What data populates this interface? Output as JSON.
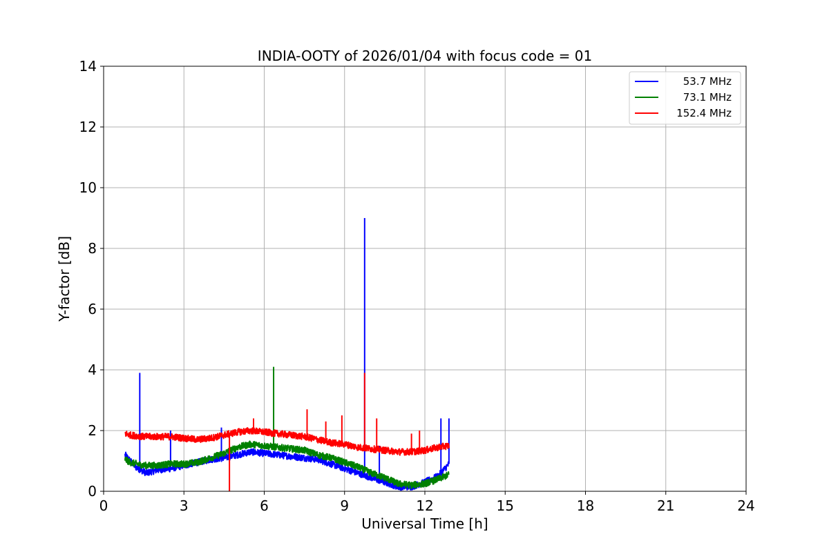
{
  "chart_data": {
    "type": "line",
    "title": "INDIA-OOTY of 2026/01/04 with focus code = 01",
    "xlabel": "Universal Time [h]",
    "ylabel": "Y-factor [dB]",
    "xlim": [
      0,
      24
    ],
    "ylim": [
      0,
      14
    ],
    "xticks": [
      0,
      3,
      6,
      9,
      12,
      15,
      18,
      21,
      24
    ],
    "yticks": [
      0,
      2,
      4,
      6,
      8,
      10,
      12,
      14
    ],
    "xtick_labels": [
      "0",
      "3",
      "6",
      "9",
      "12",
      "15",
      "18",
      "21",
      "24"
    ],
    "ytick_labels": [
      "0",
      "2",
      "4",
      "6",
      "8",
      "10",
      "12",
      "14"
    ],
    "grid": true,
    "legend_position": "top-right",
    "series": [
      {
        "name": "53.7 MHz",
        "color": "#0000ff",
        "x": [
          0.8,
          1.0,
          1.2,
          1.4,
          1.6,
          2.0,
          2.5,
          3.0,
          3.5,
          4.0,
          4.5,
          5.0,
          5.5,
          6.0,
          6.5,
          7.0,
          7.5,
          8.0,
          8.5,
          9.0,
          9.5,
          10.0,
          10.5,
          11.0,
          11.5,
          12.0,
          12.5,
          12.9
        ],
        "y": [
          1.2,
          1.0,
          0.8,
          0.7,
          0.6,
          0.7,
          0.75,
          0.85,
          0.95,
          1.05,
          1.1,
          1.2,
          1.3,
          1.25,
          1.2,
          1.15,
          1.1,
          1.05,
          0.9,
          0.75,
          0.6,
          0.45,
          0.3,
          0.15,
          0.15,
          0.3,
          0.5,
          0.9
        ],
        "spikes": [
          [
            1.35,
            3.9
          ],
          [
            2.5,
            2.0
          ],
          [
            4.4,
            2.1
          ],
          [
            9.75,
            9.0
          ],
          [
            10.3,
            1.5
          ],
          [
            12.6,
            2.4
          ],
          [
            12.9,
            2.4
          ]
        ]
      },
      {
        "name": "73.1 MHz",
        "color": "#008000",
        "x": [
          0.8,
          1.0,
          1.5,
          2.0,
          2.5,
          3.0,
          3.5,
          4.0,
          4.5,
          5.0,
          5.5,
          6.0,
          6.5,
          7.0,
          7.5,
          8.0,
          8.5,
          9.0,
          9.5,
          10.0,
          10.5,
          11.0,
          11.5,
          12.0,
          12.5,
          12.9
        ],
        "y": [
          1.05,
          0.95,
          0.85,
          0.85,
          0.9,
          0.9,
          0.95,
          1.1,
          1.25,
          1.45,
          1.55,
          1.5,
          1.45,
          1.4,
          1.35,
          1.2,
          1.1,
          0.95,
          0.8,
          0.6,
          0.45,
          0.25,
          0.2,
          0.25,
          0.4,
          0.55
        ],
        "spikes": [
          [
            6.35,
            4.1
          ]
        ]
      },
      {
        "name": "152.4 MHz",
        "color": "#ff0000",
        "x": [
          0.8,
          1.0,
          1.5,
          2.0,
          2.5,
          3.0,
          3.5,
          4.0,
          4.5,
          5.0,
          5.5,
          6.0,
          6.5,
          7.0,
          7.5,
          8.0,
          8.5,
          9.0,
          9.5,
          10.0,
          10.5,
          11.0,
          11.5,
          12.0,
          12.5,
          12.9
        ],
        "y": [
          1.9,
          1.85,
          1.8,
          1.8,
          1.8,
          1.75,
          1.7,
          1.75,
          1.85,
          1.95,
          2.0,
          1.95,
          1.9,
          1.85,
          1.8,
          1.7,
          1.6,
          1.55,
          1.45,
          1.4,
          1.35,
          1.3,
          1.3,
          1.35,
          1.45,
          1.5
        ],
        "spikes": [
          [
            4.7,
            0.0
          ],
          [
            5.6,
            2.4
          ],
          [
            7.6,
            2.7
          ],
          [
            8.3,
            2.3
          ],
          [
            8.9,
            2.5
          ],
          [
            9.75,
            3.9
          ],
          [
            10.2,
            2.4
          ],
          [
            11.5,
            1.9
          ],
          [
            11.8,
            2.0
          ]
        ]
      }
    ]
  }
}
